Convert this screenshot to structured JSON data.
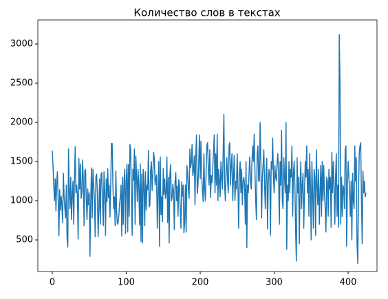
{
  "chart_data": {
    "type": "line",
    "title": "Количество слов в текстах",
    "xlim": [
      -19.5,
      439
    ],
    "xticks": [
      0,
      100,
      200,
      300,
      400
    ],
    "ylim": [
      97,
      3307
    ],
    "yticks": [
      500,
      1000,
      1500,
      2000,
      2500,
      3000
    ],
    "grid": false,
    "series": [
      {
        "color": "#1f77b4",
        "values": [
          1640,
          1450,
          1200,
          1000,
          1280,
          870,
          1250,
          1370,
          1000,
          550,
          1140,
          880,
          1060,
          940,
          720,
          1350,
          1050,
          900,
          780,
          1200,
          520,
          410,
          1660,
          1100,
          900,
          1300,
          760,
          1060,
          1250,
          700,
          1280,
          1690,
          1100,
          1200,
          1050,
          510,
          1540,
          1150,
          1470,
          1030,
          1100,
          1520,
          1250,
          680,
          1380,
          1400,
          1000,
          760,
          1150,
          950,
          1100,
          290,
          1000,
          1420,
          780,
          1400,
          1200,
          1020,
          540,
          1300,
          1340,
          1100,
          540,
          880,
          1280,
          700,
          1340,
          1360,
          980,
          680,
          1370,
          1100,
          560,
          1280,
          990,
          1410,
          1040,
          1200,
          790,
          1180,
          1730,
          1730,
          1200,
          900,
          1050,
          680,
          1380,
          870,
          700,
          720,
          810,
          960,
          1050,
          1200,
          550,
          1300,
          700,
          1250,
          1400,
          580,
          1270,
          1470,
          600,
          1460,
          800,
          1720,
          1650,
          1100,
          560,
          1400,
          1260,
          1660,
          700,
          1570,
          1310,
          990,
          1400,
          1190,
          690,
          1470,
          480,
          1340,
          460,
          1400,
          1220,
          680,
          1370,
          880,
          1200,
          1140,
          1640,
          920,
          950,
          1390,
          1500,
          1130,
          1350,
          1620,
          1540,
          1200,
          1280,
          1330,
          650,
          1100,
          1500,
          420,
          1560,
          820,
          1050,
          730,
          1410,
          1080,
          1280,
          1030,
          1100,
          1560,
          720,
          1300,
          460,
          1330,
          1460,
          1000,
          1040,
          1210,
          1110,
          630,
          1240,
          1360,
          1000,
          1190,
          800,
          1270,
          1190,
          880,
          650,
          1240,
          1060,
          1200,
          590,
          720,
          1200,
          600,
          1450,
          1350,
          1150,
          1030,
          1660,
          1420,
          1480,
          1720,
          1320,
          1380,
          1570,
          950,
          1580,
          1840,
          1090,
          1200,
          1480,
          1840,
          1280,
          1760,
          1330,
          1130,
          990,
          1600,
          1150,
          1000,
          1380,
          1700,
          1740,
          1400,
          1200,
          1650,
          1040,
          1320,
          1230,
          1420,
          1630,
          1840,
          1100,
          1600,
          1200,
          1850,
          1000,
          1400,
          1250,
          1050,
          1500,
          1300,
          1150,
          1600,
          2100,
          1200,
          1000,
          1400,
          1550,
          1250,
          1100,
          1700,
          1740,
          1200,
          1450,
          1600,
          1000,
          1300,
          1580,
          1000,
          1250,
          1150,
          1600,
          1200,
          650,
          1350,
          1500,
          1100,
          1400,
          950,
          1250,
          1300,
          1200,
          700,
          1500,
          400,
          1200,
          1100,
          1350,
          1560,
          1250,
          1150,
          1500,
          1700,
          1500,
          1850,
          1380,
          1000,
          760,
          1600,
          1700,
          1250,
          1250,
          2000,
          1500,
          780,
          1300,
          1450,
          1650,
          1200,
          900,
          1370,
          1540,
          640,
          1200,
          1400,
          1350,
          560,
          1500,
          1400,
          1800,
          1300,
          1100,
          1450,
          1300,
          1250,
          1500,
          1600,
          1300,
          700,
          1500,
          1200,
          1900,
          1000,
          900,
          1550,
          1300,
          1100,
          2000,
          380,
          1200,
          1000,
          1500,
          1100,
          1400,
          1300,
          1700,
          800,
          1350,
          1500,
          1200,
          600,
          230,
          1550,
          1100,
          1300,
          450,
          1200,
          1500,
          900,
          1200,
          1350,
          650,
          1100,
          1500,
          1300,
          1700,
          1100,
          1400,
          800,
          1600,
          1200,
          500,
          1500,
          1100,
          650,
          1400,
          1300,
          560,
          1650,
          1200,
          950,
          1400,
          700,
          1100,
          1450,
          800,
          1500,
          1000,
          1450,
          1100,
          900,
          600,
          1300,
          1250,
          800,
          1400,
          1150,
          1300,
          660,
          1620,
          1100,
          1500,
          1200,
          700,
          1300,
          1600,
          800,
          1200,
          660,
          3120,
          2500,
          700,
          1300,
          800,
          1200,
          1150,
          900,
          1650,
          1700,
          420,
          1200,
          1500,
          1300,
          1100,
          800,
          1250,
          500,
          1350,
          1000,
          900,
          1700,
          1250,
          1550,
          450,
          200,
          1100,
          1600,
          1700,
          1740,
          1000,
          450,
          1380,
          1100,
          1250,
          1050,
          1100
        ]
      }
    ]
  }
}
